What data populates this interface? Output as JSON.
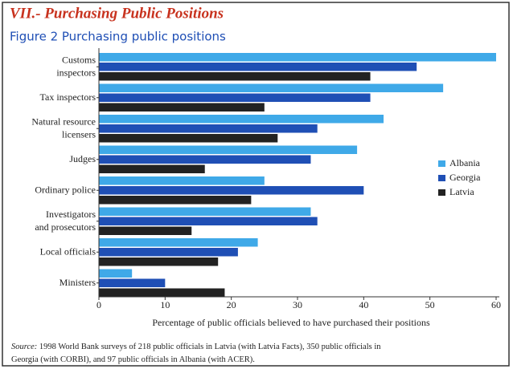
{
  "chart_data": {
    "type": "bar",
    "orientation": "horizontal",
    "title": "VII.- Purchasing Public Positions",
    "subtitle": "Figure 2 Purchasing public positions",
    "xlabel": "Percentage of public officials believed to have purchased their positions",
    "source_label": "Source:",
    "source_text": "1998 World Bank surveys of 218 public officials in Latvia (with Latvia Facts), 350 public officials in Georgia (with CORBI), and 97 public officials in Albania (with ACER).",
    "categories": [
      "Customs\ninspectors",
      "Tax inspectors",
      "Natural resource\nlicensers",
      "Judges",
      "Ordinary police",
      "Investigators\nand prosecutors",
      "Local officials",
      "Ministers"
    ],
    "series": [
      {
        "name": "Albania",
        "color": "#3fa9e8",
        "values": [
          60,
          52,
          43,
          39,
          25,
          32,
          24,
          5
        ]
      },
      {
        "name": "Georgia",
        "color": "#1f4fb5",
        "values": [
          48,
          41,
          33,
          32,
          40,
          33,
          21,
          10
        ]
      },
      {
        "name": "Latvia",
        "color": "#222222",
        "values": [
          41,
          25,
          27,
          16,
          23,
          14,
          18,
          19
        ]
      }
    ],
    "xlim": [
      0,
      60
    ],
    "xticks": [
      0,
      10,
      20,
      30,
      40,
      50,
      60
    ],
    "legend": "right"
  }
}
